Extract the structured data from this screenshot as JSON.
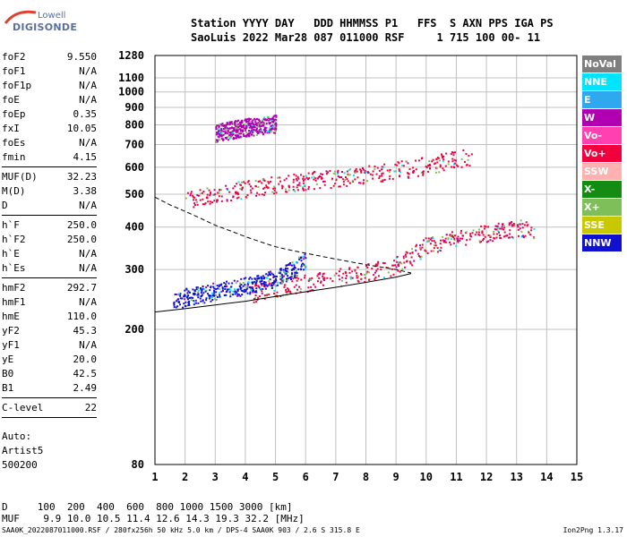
{
  "logo": {
    "line1": "Lowell",
    "line2": "DIGISONDE"
  },
  "header": {
    "line1": "Station YYYY DAY   DDD HHMMSS P1   FFS  S AXN PPS IGA PS",
    "line2": "SaoLuis 2022 Mar28 087 011000 RSF     1 715 100 00- 11"
  },
  "params": {
    "group1": [
      {
        "label": "foF2",
        "value": "9.550"
      },
      {
        "label": "foF1",
        "value": "N/A"
      },
      {
        "label": "foF1p",
        "value": "N/A"
      },
      {
        "label": "foE",
        "value": "N/A"
      },
      {
        "label": "foEp",
        "value": "0.35"
      },
      {
        "label": "fxI",
        "value": "10.05"
      },
      {
        "label": "foEs",
        "value": "N/A"
      },
      {
        "label": "fmin",
        "value": "4.15"
      }
    ],
    "group2": [
      {
        "label": "MUF(D)",
        "value": "32.23"
      },
      {
        "label": "M(D)",
        "value": "3.38"
      },
      {
        "label": "D",
        "value": "N/A"
      }
    ],
    "group3": [
      {
        "label": "h`F",
        "value": "250.0"
      },
      {
        "label": "h`F2",
        "value": "250.0"
      },
      {
        "label": "h`E",
        "value": "N/A"
      },
      {
        "label": "h`Es",
        "value": "N/A"
      }
    ],
    "group4": [
      {
        "label": "hmF2",
        "value": "292.7"
      },
      {
        "label": "hmF1",
        "value": "N/A"
      },
      {
        "label": "hmE",
        "value": "110.0"
      },
      {
        "label": "yF2",
        "value": "45.3"
      },
      {
        "label": "yF1",
        "value": "N/A"
      },
      {
        "label": "yE",
        "value": "20.0"
      },
      {
        "label": "B0",
        "value": "42.5"
      },
      {
        "label": "B1",
        "value": "2.49"
      }
    ],
    "group5": [
      {
        "label": "C-level",
        "value": "22"
      }
    ]
  },
  "auto": {
    "line1": "Auto:",
    "line2": "Artist5",
    "line3": "500200"
  },
  "bottom": {
    "line1": "D     100  200  400  600  800 1000 1500 3000 [km]",
    "line2": "MUF    9.9 10.0 10.5 11.4 12.6 14.3 19.3 32.2 [MHz]"
  },
  "footer": "SAA0K_2022087011000.RSF / 280fx256h 50 kHz 5.0 km / DPS-4 SAA0K 903 / 2.6 S 315.8 E",
  "version": "Ion2Png 1.3.17",
  "legend": [
    {
      "label": "NoVal",
      "color": "#7f7f7f"
    },
    {
      "label": "NNE",
      "color": "#00e5ff"
    },
    {
      "label": "E",
      "color": "#2fa8f0"
    },
    {
      "label": "W",
      "color": "#b000b0"
    },
    {
      "label": "Vo-",
      "color": "#ff40b0"
    },
    {
      "label": "Vo+",
      "color": "#f0003c"
    },
    {
      "label": "SSW",
      "color": "#ffb0b0"
    },
    {
      "label": "X-",
      "color": "#148c14"
    },
    {
      "label": "X+",
      "color": "#7fbf5a"
    },
    {
      "label": "SSE",
      "color": "#c8c800"
    },
    {
      "label": "NNW",
      "color": "#1010d0"
    }
  ],
  "chart_data": {
    "type": "scatter",
    "xlabel": "",
    "ylabel": "",
    "x_ticks": [
      1,
      2,
      3,
      4,
      5,
      6,
      7,
      8,
      9,
      10,
      11,
      12,
      13,
      14,
      15
    ],
    "y_ticks": [
      80,
      200,
      300,
      400,
      500,
      600,
      700,
      800,
      900,
      1000,
      1100,
      1280
    ],
    "xlim": [
      1,
      15
    ],
    "y_range_km": [
      80,
      1280
    ],
    "scale": "log-height",
    "grid": true,
    "traces": [
      {
        "name": "F2 O-trace",
        "color": "#f0003c",
        "x": [
          4.2,
          5.0,
          6.0,
          7.0,
          8.0,
          9.0,
          9.5,
          10.0,
          11.0,
          12.0,
          13.0,
          13.6
        ],
        "y": [
          255,
          265,
          275,
          285,
          295,
          310,
          330,
          355,
          370,
          385,
          400,
          395
        ]
      },
      {
        "name": "F2 blue spread",
        "color": "#1010d0",
        "x": [
          1.6,
          2.0,
          2.5,
          3.0,
          3.5,
          4.0,
          4.5,
          5.0,
          5.5,
          6.0
        ],
        "y": [
          240,
          250,
          255,
          260,
          265,
          270,
          275,
          285,
          300,
          320
        ]
      },
      {
        "name": "Second hop",
        "color": "#f0003c",
        "x": [
          2.0,
          3.0,
          4.0,
          5.0,
          6.0,
          7.0,
          8.0,
          9.0,
          10.0,
          11.0,
          11.5
        ],
        "y": [
          480,
          505,
          520,
          535,
          550,
          560,
          575,
          590,
          610,
          635,
          650
        ]
      },
      {
        "name": "Third hop",
        "color": "#b000b0",
        "x": [
          3.0,
          3.5,
          4.0,
          4.5,
          5.0
        ],
        "y": [
          760,
          775,
          790,
          800,
          810
        ]
      }
    ],
    "profile_solid": {
      "x": [
        1.0,
        2.0,
        3.0,
        4.0,
        5.0,
        6.0,
        7.0,
        8.0,
        9.0,
        9.5
      ],
      "y": [
        225,
        230,
        236,
        242,
        250,
        258,
        266,
        275,
        285,
        292
      ]
    },
    "profile_dashed": {
      "x": [
        1.0,
        1.5,
        2.0,
        2.5,
        3.0,
        3.5,
        4.0,
        4.5,
        5.0,
        5.5,
        6.0,
        7.0,
        8.0,
        9.0,
        9.5
      ],
      "y": [
        490,
        465,
        445,
        425,
        405,
        390,
        375,
        362,
        350,
        342,
        335,
        322,
        310,
        300,
        293
      ]
    }
  }
}
